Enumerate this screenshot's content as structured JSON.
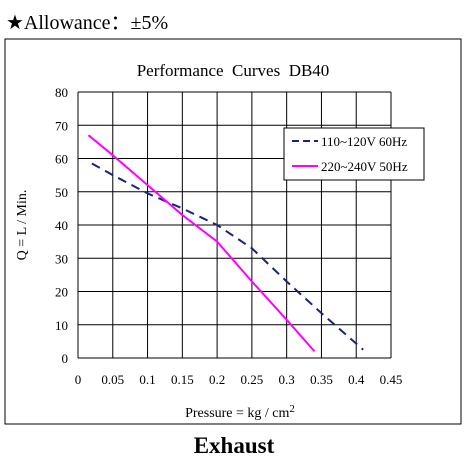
{
  "header": {
    "allowance": "★Allowance：±5%"
  },
  "footer": {
    "caption": "Exhaust"
  },
  "chart_data": {
    "type": "line",
    "title": "Performance  Curves  DB40",
    "xlabel": "Pressure = kg / cm²",
    "ylabel": "Q = L / Min.",
    "xlim": [
      0,
      0.45
    ],
    "ylim": [
      0,
      80
    ],
    "xticks": [
      0,
      0.05,
      0.1,
      0.15,
      0.2,
      0.25,
      0.3,
      0.35,
      0.4,
      0.45
    ],
    "xtick_labels": [
      "0",
      "0.05",
      "0.1",
      "0.15",
      "0.2",
      "0.25",
      "0.3",
      "0.35",
      "0.4",
      "0.45"
    ],
    "yticks": [
      0,
      10,
      20,
      30,
      40,
      50,
      60,
      70,
      80
    ],
    "ytick_labels": [
      "0",
      "10",
      "20",
      "30",
      "40",
      "50",
      "60",
      "70",
      "80"
    ],
    "grid": true,
    "legend": "top-right",
    "series": [
      {
        "name": "110~120V 60Hz",
        "color": "#1a237e",
        "dash": true,
        "x": [
          0.02,
          0.05,
          0.1,
          0.15,
          0.2,
          0.25,
          0.3,
          0.35,
          0.41
        ],
        "y": [
          58.5,
          55,
          49.5,
          45,
          40,
          33,
          23,
          13.5,
          2.5
        ]
      },
      {
        "name": "220~240V 50Hz",
        "color": "#ff00ff",
        "dash": false,
        "x": [
          0.015,
          0.05,
          0.1,
          0.15,
          0.2,
          0.25,
          0.3,
          0.34
        ],
        "y": [
          67,
          61,
          52,
          43,
          35,
          23,
          11.5,
          2
        ]
      }
    ]
  }
}
